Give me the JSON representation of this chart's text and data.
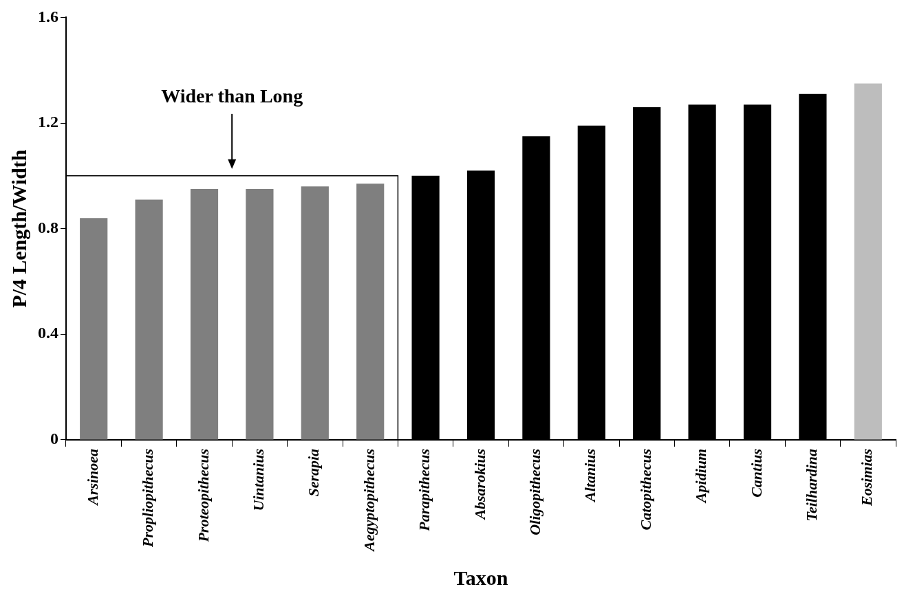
{
  "chart_data": {
    "type": "bar",
    "xlabel": "Taxon",
    "ylabel": "P/4 Length/Width",
    "categories": [
      "Arsinoea",
      "Propliopithecus",
      "Proteopithecus",
      "Uintanius",
      "Serapia",
      "Aegyptopithecus",
      "Parapithecus",
      "Absarokius",
      "Oligopithecus",
      "Altanius",
      "Catopithecus",
      "Apidium",
      "Cantius",
      "Teilhardina",
      "Eosimias"
    ],
    "values": [
      0.84,
      0.91,
      0.95,
      0.95,
      0.96,
      0.97,
      1.0,
      1.02,
      1.15,
      1.19,
      1.26,
      1.27,
      1.27,
      1.31,
      1.35
    ],
    "colors": [
      "#7f7f7f",
      "#7f7f7f",
      "#7f7f7f",
      "#7f7f7f",
      "#7f7f7f",
      "#7f7f7f",
      "#000000",
      "#000000",
      "#000000",
      "#000000",
      "#000000",
      "#000000",
      "#000000",
      "#000000",
      "#bdbdbd"
    ],
    "ylim": [
      0,
      1.6
    ],
    "yticks": [
      0,
      0.4,
      0.8,
      1.2,
      1.6
    ],
    "grid": false,
    "legend": false,
    "ref_lines": [
      {
        "axis": "y",
        "value": 1.0,
        "label": "Wider than Long",
        "color": "#000000"
      }
    ]
  }
}
